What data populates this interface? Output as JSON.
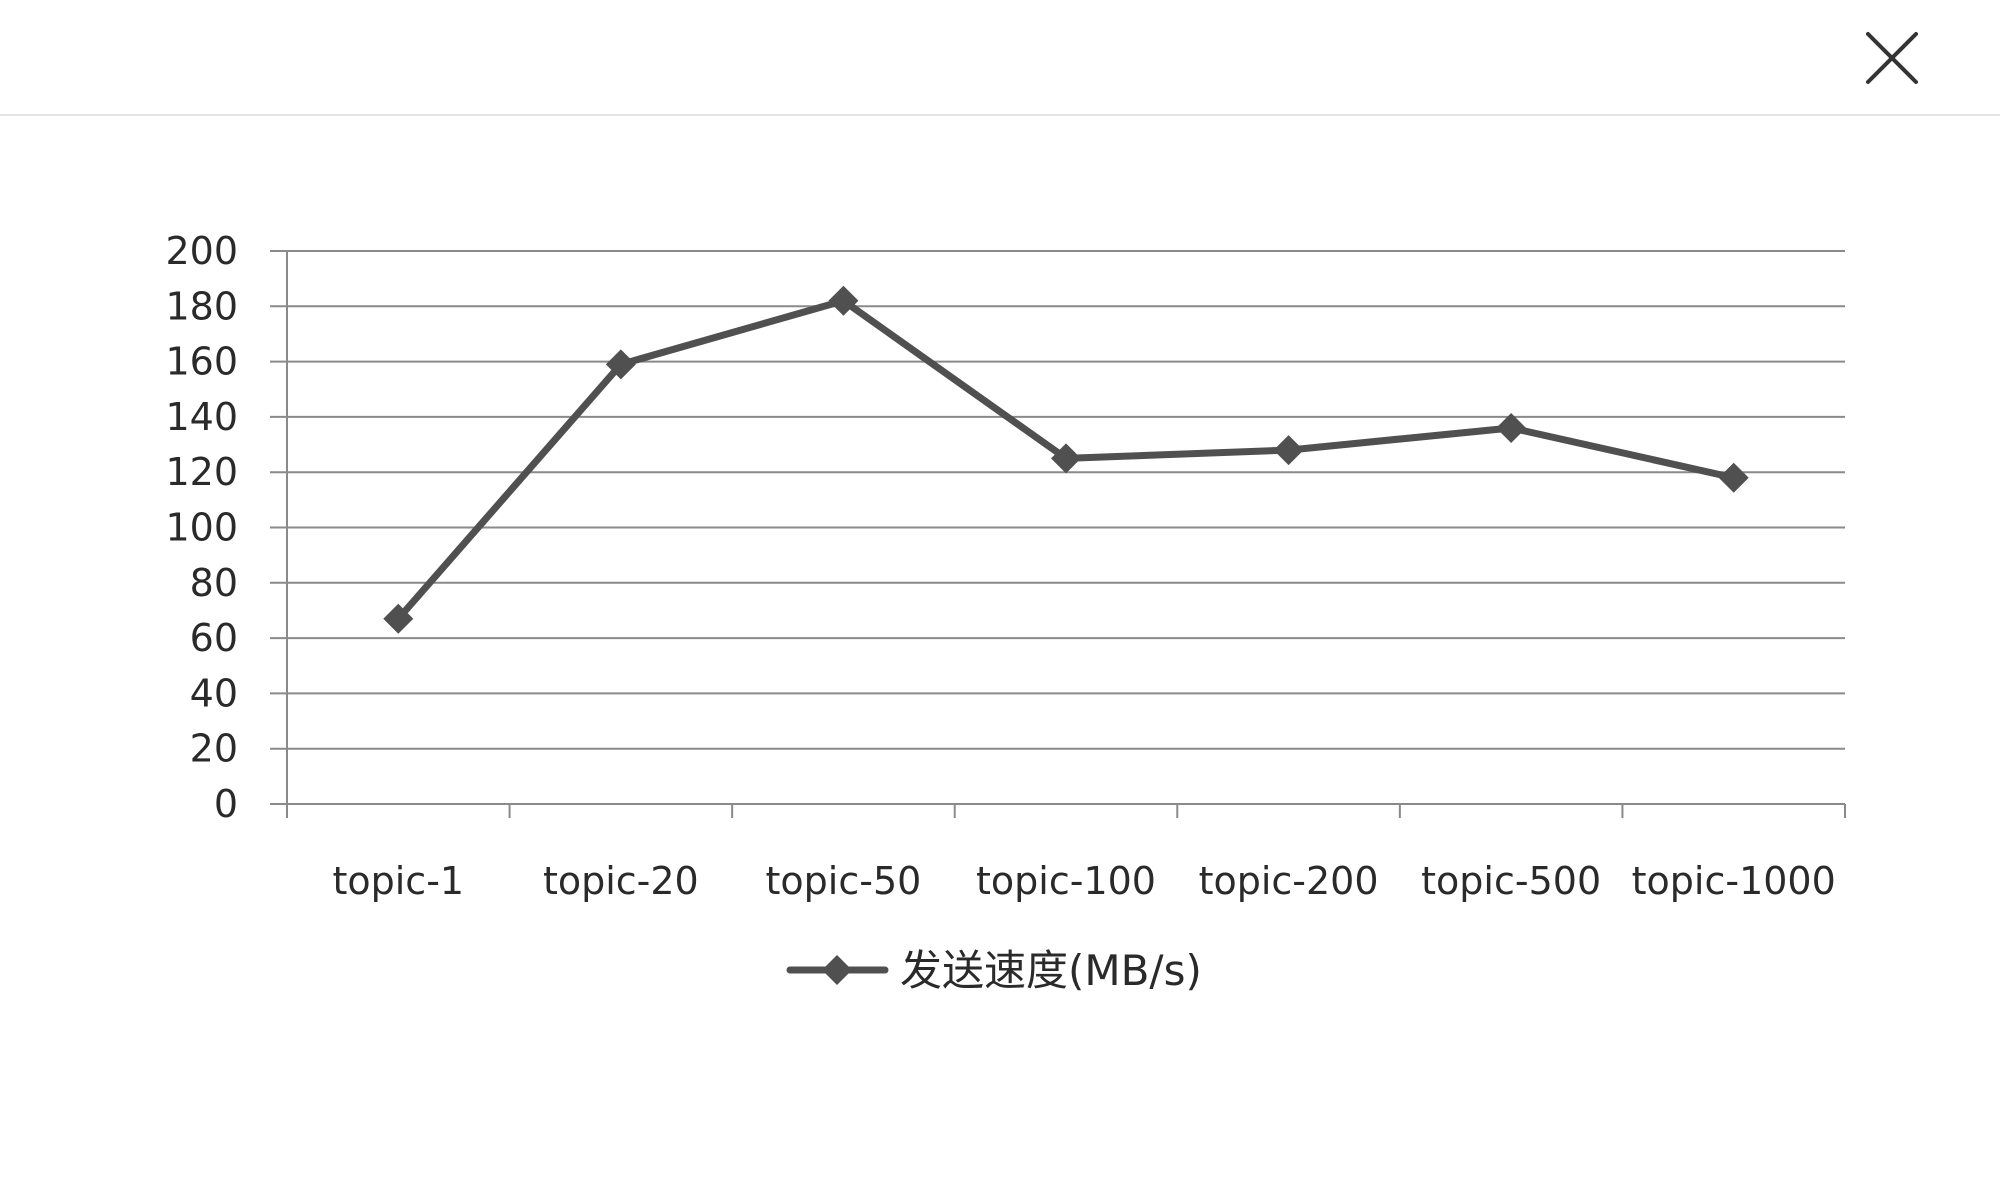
{
  "window": {
    "close_icon": "close-icon"
  },
  "colors": {
    "series": "#505050",
    "grid": "#8a8a8a",
    "axis": "#8a8a8a",
    "text": "#2a2a2a"
  },
  "chart_data": {
    "type": "line",
    "categories": [
      "topic-1",
      "topic-20",
      "topic-50",
      "topic-100",
      "topic-200",
      "topic-500",
      "topic-1000"
    ],
    "series": [
      {
        "name": "发送速度(MB/s)",
        "values": [
          67,
          159,
          182,
          125,
          128,
          136,
          118
        ],
        "marker": "diamond"
      }
    ],
    "title": "",
    "xlabel": "",
    "ylabel": "",
    "ylim": [
      0,
      200
    ],
    "yticks": [
      0,
      20,
      40,
      60,
      80,
      100,
      120,
      140,
      160,
      180,
      200
    ],
    "grid": true,
    "legend_position": "bottom"
  }
}
